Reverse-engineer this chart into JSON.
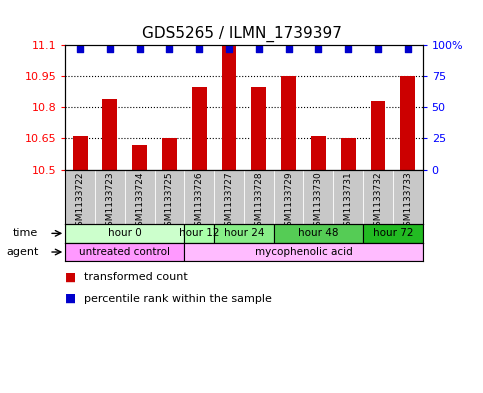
{
  "title": "GDS5265 / ILMN_1739397",
  "samples": [
    "GSM1133722",
    "GSM1133723",
    "GSM1133724",
    "GSM1133725",
    "GSM1133726",
    "GSM1133727",
    "GSM1133728",
    "GSM1133729",
    "GSM1133730",
    "GSM1133731",
    "GSM1133732",
    "GSM1133733"
  ],
  "bar_values": [
    10.66,
    10.84,
    10.62,
    10.65,
    10.9,
    11.1,
    10.9,
    10.95,
    10.66,
    10.65,
    10.83,
    10.95
  ],
  "percentile_values": [
    97,
    97,
    97,
    97,
    97,
    97,
    97,
    97,
    97,
    97,
    97,
    97
  ],
  "ylim_left": [
    10.5,
    11.1
  ],
  "ylim_right": [
    0,
    100
  ],
  "yticks_left": [
    10.5,
    10.65,
    10.8,
    10.95,
    11.1
  ],
  "yticks_right": [
    0,
    25,
    50,
    75,
    100
  ],
  "ytick_labels_left": [
    "10.5",
    "10.65",
    "10.8",
    "10.95",
    "11.1"
  ],
  "ytick_labels_right": [
    "0",
    "25",
    "50",
    "75",
    "100%"
  ],
  "bar_color": "#cc0000",
  "dot_color": "#0000cc",
  "bar_width": 0.5,
  "dotted_gridlines": [
    10.65,
    10.8,
    10.95
  ],
  "time_groups": [
    {
      "label": "hour 0",
      "start": 0,
      "end": 3,
      "color": "#ccffcc"
    },
    {
      "label": "hour 12",
      "start": 4,
      "end": 4,
      "color": "#aaffaa"
    },
    {
      "label": "hour 24",
      "start": 5,
      "end": 6,
      "color": "#88ee88"
    },
    {
      "label": "hour 48",
      "start": 7,
      "end": 9,
      "color": "#55cc55"
    },
    {
      "label": "hour 72",
      "start": 10,
      "end": 11,
      "color": "#22bb22"
    }
  ],
  "agent_groups": [
    {
      "label": "untreated control",
      "start": 0,
      "end": 3,
      "color": "#ff99ff"
    },
    {
      "label": "mycophenolic acid",
      "start": 4,
      "end": 11,
      "color": "#ffbbff"
    }
  ],
  "legend_items": [
    {
      "label": "transformed count",
      "color": "#cc0000"
    },
    {
      "label": "percentile rank within the sample",
      "color": "#0000cc"
    }
  ],
  "sample_bg_color": "#c8c8c8",
  "time_label": "time",
  "agent_label": "agent",
  "title_fontsize": 11,
  "tick_fontsize": 8,
  "sample_fontsize": 6.5,
  "row_fontsize": 8
}
